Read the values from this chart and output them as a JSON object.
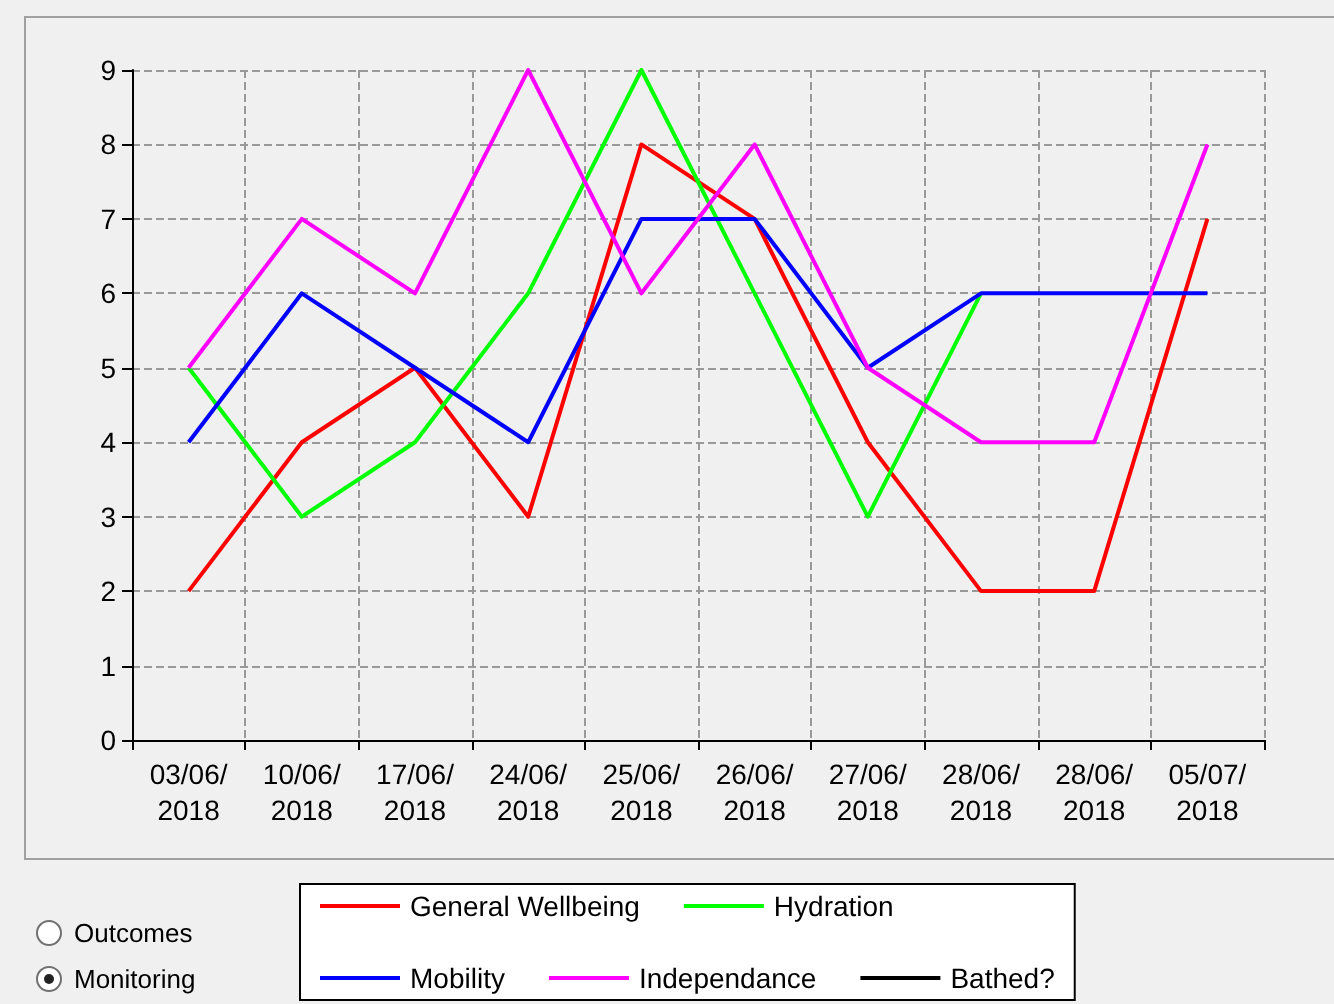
{
  "chart_data": {
    "type": "line",
    "categories": [
      "03/06/\n2018",
      "10/06/\n2018",
      "17/06/\n2018",
      "24/06/\n2018",
      "25/06/\n2018",
      "26/06/\n2018",
      "27/06/\n2018",
      "28/06/\n2018",
      "28/06/\n2018",
      "05/07/\n2018"
    ],
    "series": [
      {
        "name": "General Wellbeing",
        "color": "#ff0000",
        "values": [
          2,
          4,
          5,
          3,
          8,
          7,
          4,
          2,
          2,
          7
        ]
      },
      {
        "name": "Hydration",
        "color": "#00ff00",
        "values": [
          5,
          3,
          4,
          6,
          9,
          6,
          3,
          6,
          null,
          null
        ]
      },
      {
        "name": "Mobility",
        "color": "#0000ff",
        "values": [
          4,
          6,
          5,
          4,
          7,
          7,
          5,
          6,
          6,
          6
        ]
      },
      {
        "name": "Independance",
        "color": "#ff00ff",
        "values": [
          5,
          7,
          6,
          9,
          6,
          8,
          5,
          4,
          4,
          8
        ]
      },
      {
        "name": "Bathed?",
        "color": "#000000",
        "values": [
          null,
          null,
          null,
          null,
          null,
          null,
          null,
          null,
          null,
          null
        ]
      }
    ],
    "ylim": [
      0,
      9
    ],
    "yticks": [
      0,
      1,
      2,
      3,
      4,
      5,
      6,
      7,
      8,
      9
    ],
    "grid": true,
    "legend": "bottom",
    "marker": "none",
    "line_style": "solid",
    "annotations": [
      "Outcomes",
      "Monitoring"
    ]
  }
}
